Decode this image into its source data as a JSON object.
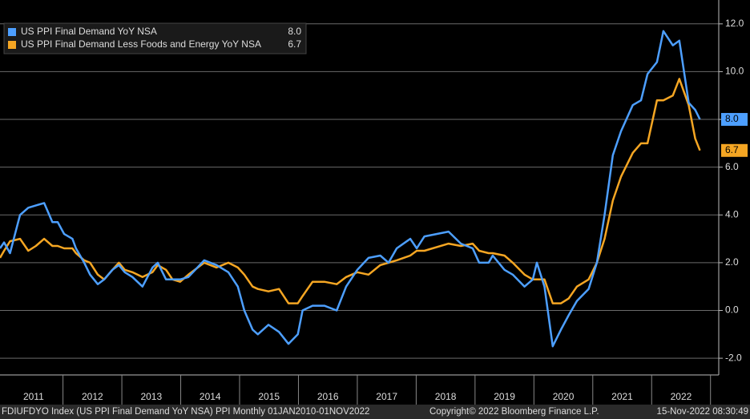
{
  "chart_data": {
    "type": "line",
    "x": [
      2010.93,
      2011.0,
      2011.1,
      2011.27,
      2011.41,
      2011.54,
      2011.68,
      2011.82,
      2011.91,
      2012.02,
      2012.16,
      2012.22,
      2012.36,
      2012.46,
      2012.59,
      2012.7,
      2012.84,
      2012.95,
      2013.05,
      2013.18,
      2013.35,
      2013.52,
      2013.61,
      2013.75,
      2013.86,
      2013.99,
      2014.13,
      2014.4,
      2014.61,
      2014.81,
      2014.97,
      2015.08,
      2015.22,
      2015.31,
      2015.49,
      2015.67,
      2015.83,
      2015.99,
      2016.07,
      2016.24,
      2016.44,
      2016.65,
      2016.81,
      2017.0,
      2017.19,
      2017.39,
      2017.53,
      2017.67,
      2017.9,
      2018.01,
      2018.14,
      2018.55,
      2018.76,
      2018.96,
      2019.07,
      2019.23,
      2019.3,
      2019.5,
      2019.64,
      2019.84,
      2019.98,
      2020.05,
      2020.18,
      2020.32,
      2020.46,
      2020.59,
      2020.73,
      2020.93,
      2021.07,
      2021.2,
      2021.34,
      2021.48,
      2021.68,
      2021.82,
      2021.93,
      2022.09,
      2022.2,
      2022.36,
      2022.47,
      2022.63,
      2022.74,
      2022.82
    ],
    "series": [
      {
        "name": "US PPI Final Demand YoY NSA",
        "color": "#4d9fff",
        "last_label": "8.0",
        "values": [
          2.6,
          2.85,
          2.4,
          4.0,
          4.3,
          4.4,
          4.5,
          3.7,
          3.7,
          3.2,
          3.0,
          2.6,
          2.0,
          1.5,
          1.1,
          1.3,
          1.7,
          1.9,
          1.6,
          1.4,
          1.0,
          1.8,
          2.0,
          1.3,
          1.3,
          1.3,
          1.4,
          2.1,
          1.9,
          1.6,
          1.0,
          0.0,
          -0.8,
          -1.0,
          -0.6,
          -0.9,
          -1.4,
          -1.0,
          0.0,
          0.2,
          0.2,
          0.0,
          1.0,
          1.7,
          2.2,
          2.3,
          2.0,
          2.6,
          3.0,
          2.6,
          3.1,
          3.3,
          2.8,
          2.6,
          2.0,
          2.0,
          2.3,
          1.7,
          1.5,
          1.0,
          1.3,
          2.0,
          1.0,
          -1.5,
          -0.8,
          -0.2,
          0.4,
          0.9,
          2.0,
          4.0,
          6.5,
          7.5,
          8.6,
          8.8,
          9.9,
          10.4,
          11.7,
          11.1,
          11.3,
          8.7,
          8.4,
          8.0
        ]
      },
      {
        "name": "US PPI Final Demand Less Foods and Energy YoY NSA",
        "color": "#f5a623",
        "last_label": "6.7",
        "values": [
          2.2,
          2.5,
          2.9,
          3.0,
          2.5,
          2.7,
          3.0,
          2.7,
          2.7,
          2.6,
          2.6,
          2.4,
          2.1,
          2.0,
          1.5,
          1.3,
          1.7,
          2.0,
          1.7,
          1.6,
          1.4,
          1.6,
          1.9,
          1.7,
          1.3,
          1.2,
          1.5,
          2.0,
          1.8,
          2.0,
          1.8,
          1.5,
          1.0,
          0.9,
          0.8,
          0.9,
          0.3,
          0.3,
          0.6,
          1.2,
          1.2,
          1.1,
          1.4,
          1.6,
          1.5,
          1.9,
          2.0,
          2.1,
          2.3,
          2.5,
          2.5,
          2.8,
          2.7,
          2.8,
          2.5,
          2.4,
          2.4,
          2.3,
          2.0,
          1.5,
          1.3,
          1.3,
          1.3,
          0.3,
          0.3,
          0.5,
          1.0,
          1.3,
          2.0,
          3.0,
          4.6,
          5.6,
          6.6,
          7.0,
          7.0,
          8.8,
          8.8,
          9.0,
          9.7,
          8.6,
          7.2,
          6.7
        ]
      }
    ],
    "xlim": [
      2010.93,
      2023.14
    ],
    "xticks": [
      {
        "value": 2011.5,
        "label": "2011"
      },
      {
        "value": 2012.5,
        "label": "2012"
      },
      {
        "value": 2013.5,
        "label": "2013"
      },
      {
        "value": 2014.5,
        "label": "2014"
      },
      {
        "value": 2015.5,
        "label": "2015"
      },
      {
        "value": 2016.5,
        "label": "2016"
      },
      {
        "value": 2017.5,
        "label": "2017"
      },
      {
        "value": 2018.5,
        "label": "2018"
      },
      {
        "value": 2019.5,
        "label": "2019"
      },
      {
        "value": 2020.5,
        "label": "2020"
      },
      {
        "value": 2021.5,
        "label": "2021"
      },
      {
        "value": 2022.5,
        "label": "2022"
      }
    ],
    "ylim": [
      -2.7,
      13
    ],
    "yticks": [
      {
        "value": -2,
        "label": "-2.0"
      },
      {
        "value": 0,
        "label": "0.0"
      },
      {
        "value": 2,
        "label": "2.0"
      },
      {
        "value": 4,
        "label": "4.0"
      },
      {
        "value": 6,
        "label": "6.0"
      },
      {
        "value": 8,
        "label": "8.0"
      },
      {
        "value": 10,
        "label": "10.0"
      },
      {
        "value": 12,
        "label": "12.0"
      }
    ],
    "grid": true,
    "legend": "upper left",
    "footer": {
      "left": "FDIUFDYO Index (US PPI Final Demand YoY NSA) PPI  Monthly 01JAN2010-01NOV2022",
      "center": "Copyright© 2022 Bloomberg Finance L.P.",
      "right": "15-Nov-2022 08:30:49"
    }
  }
}
